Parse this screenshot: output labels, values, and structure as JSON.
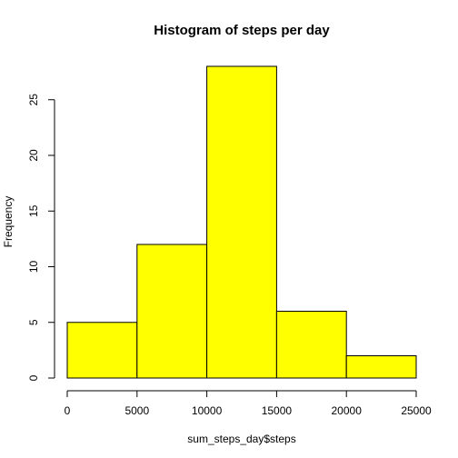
{
  "chart_data": {
    "type": "bar",
    "title": "Histogram of steps per day",
    "xlabel": "sum_steps_day$steps",
    "ylabel": "Frequency",
    "bins": [
      {
        "from": 0,
        "to": 5000,
        "count": 5
      },
      {
        "from": 5000,
        "to": 10000,
        "count": 12
      },
      {
        "from": 10000,
        "to": 15000,
        "count": 28
      },
      {
        "from": 15000,
        "to": 20000,
        "count": 6
      },
      {
        "from": 20000,
        "to": 25000,
        "count": 2
      }
    ],
    "xlim": [
      0,
      25000
    ],
    "ylim": [
      0,
      28
    ],
    "x_ticks": [
      0,
      5000,
      10000,
      15000,
      20000,
      25000
    ],
    "y_ticks": [
      0,
      5,
      10,
      15,
      20,
      25
    ],
    "bar_color": "#ffff00",
    "grid": false,
    "legend": "none"
  }
}
